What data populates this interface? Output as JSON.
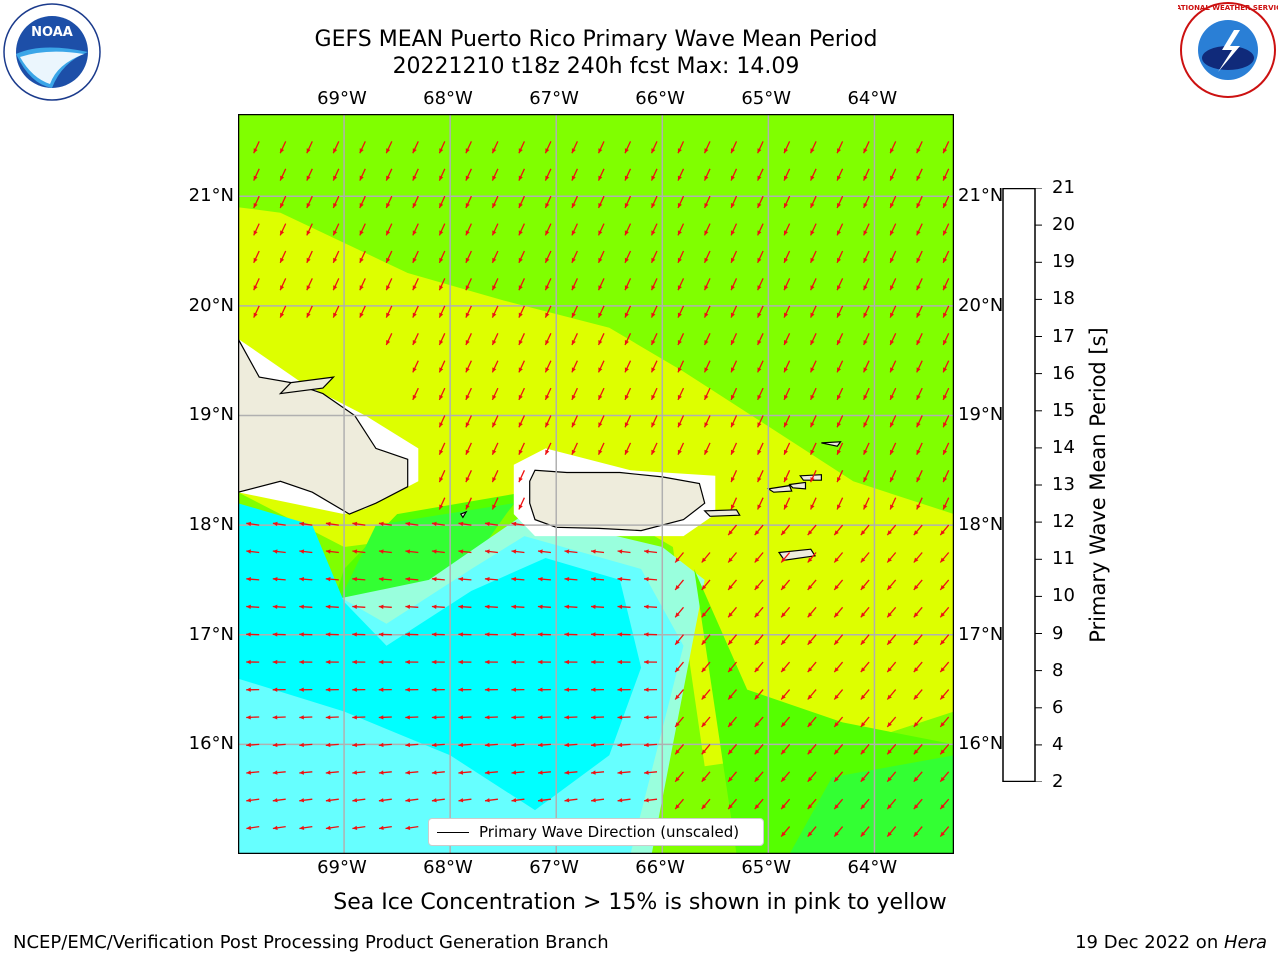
{
  "title_line1": "GEFS MEAN Puerto Rico Primary Wave Mean Period",
  "title_line2": "20221210 t18z 240h fcst   Max: 14.09",
  "lon_labels": [
    "69°W",
    "68°W",
    "67°W",
    "66°W",
    "65°W",
    "64°W"
  ],
  "lat_labels": [
    "21°N",
    "20°N",
    "19°N",
    "18°N",
    "17°N",
    "16°N"
  ],
  "map": {
    "lon_range": [
      -70,
      -63.25
    ],
    "lat_range": [
      15,
      21.75
    ],
    "land_color": "#eeecdc",
    "grid_color": "#b0b0b0",
    "arrow_color": "#ee1111",
    "background_field": "#80ff00"
  },
  "legend": {
    "label": "Primary Wave Direction (unscaled)"
  },
  "colorbar": {
    "title": "Primary Wave Mean Period [s]",
    "ticks": [
      "2",
      "4",
      "6",
      "8",
      "9",
      "10",
      "11",
      "12",
      "13",
      "14",
      "15",
      "16",
      "17",
      "18",
      "19",
      "20",
      "21"
    ],
    "colors": [
      "#0000ff",
      "#0066ff",
      "#00ffff",
      "#66ffff",
      "#99ffdd",
      "#33ff55",
      "#22ee00",
      "#55ff00",
      "#99ff00",
      "#ddff00",
      "#ffff00",
      "#ffcc00",
      "#ff9900",
      "#ff6600",
      "#ff3300",
      "#ff0000"
    ]
  },
  "footer": {
    "caption": "Sea Ice Concentration > 15% is shown in pink to yellow",
    "left": "NCEP/EMC/Verification Post Processing Product Generation Branch",
    "right_prefix": "19 Dec 2022 on ",
    "right_host": "Hera"
  },
  "logos": {
    "noaa": "NOAA",
    "nws": "NATIONAL WEATHER SERVICE"
  }
}
